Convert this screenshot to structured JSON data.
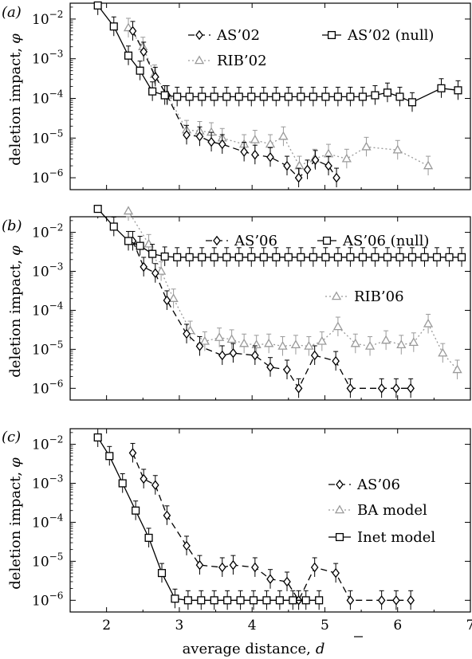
{
  "figure": {
    "xlabel": "average distance,",
    "xlabel_symbol": "d",
    "x_ticks": [
      2,
      3,
      4,
      5,
      6,
      7
    ],
    "xlim": [
      1.5,
      7.0
    ],
    "ylim_exponents": [
      -6.3,
      -1.6
    ],
    "y_tick_exponents": [
      -2,
      -3,
      -4,
      -5,
      -6
    ]
  },
  "chart_data": [
    {
      "type": "line",
      "panel": "(a)",
      "ylabel": "deletion impact,",
      "ylabel_symbol": "φ",
      "yscale": "log",
      "legend": [
        {
          "label": "AS’02",
          "series": 0
        },
        {
          "label": "AS’02 (null)",
          "series": 2
        },
        {
          "label": "RIB’02",
          "series": 1
        }
      ],
      "series": [
        {
          "name": "AS’02",
          "color": "#000000",
          "marker": "diamond",
          "dash": "8 5",
          "x": [
            2.36,
            2.51,
            2.67,
            2.83,
            3.1,
            3.28,
            3.44,
            3.59,
            3.89,
            4.04,
            4.25,
            4.48,
            4.64,
            4.76,
            4.87,
            5.05,
            5.16
          ],
          "y": [
            0.005,
            0.0015,
            0.00035,
            0.00012,
            1.2e-05,
            1.1e-05,
            8e-06,
            7e-06,
            4.5e-06,
            3.8e-06,
            3.3e-06,
            2e-06,
            1e-06,
            1.6e-06,
            2.8e-06,
            2e-06,
            1e-06
          ]
        },
        {
          "name": "RIB’02",
          "color": "#9a9a9a",
          "marker": "triangle",
          "dash": "2 3",
          "x": [
            2.3,
            2.5,
            2.66,
            2.84,
            3.1,
            3.28,
            3.44,
            3.59,
            3.89,
            4.04,
            4.25,
            4.43,
            4.65,
            4.86,
            5.05,
            5.3,
            5.57,
            6.0,
            6.42
          ],
          "y": [
            0.006,
            0.002,
            0.0004,
            0.00012,
            1.6e-05,
            1.5e-05,
            1.4e-05,
            1e-05,
            7e-06,
            9e-06,
            7e-06,
            1.1e-05,
            2e-06,
            3e-06,
            4e-06,
            3e-06,
            6e-06,
            5e-06,
            2e-06
          ]
        },
        {
          "name": "AS’02 (null)",
          "color": "#000000",
          "marker": "square",
          "dash": "",
          "x": [
            1.88,
            2.1,
            2.3,
            2.46,
            2.63,
            2.8,
            2.97,
            3.14,
            3.31,
            3.48,
            3.65,
            3.82,
            3.99,
            4.16,
            4.33,
            4.5,
            4.67,
            4.84,
            5.01,
            5.18,
            5.35,
            5.52,
            5.69,
            5.86,
            6.03,
            6.2,
            6.6,
            6.83
          ],
          "y": [
            0.022,
            0.0065,
            0.0012,
            0.0005,
            0.00015,
            0.00012,
            0.00011,
            0.00011,
            0.00011,
            0.00011,
            0.00011,
            0.00011,
            0.00011,
            0.00011,
            0.00011,
            0.00011,
            0.00011,
            0.00011,
            0.00011,
            0.00011,
            0.00011,
            0.00011,
            0.00012,
            0.00014,
            0.00011,
            8e-05,
            0.00018,
            0.00016
          ]
        }
      ]
    },
    {
      "type": "line",
      "panel": "(b)",
      "ylabel": "deletion impact,",
      "ylabel_symbol": "φ",
      "yscale": "log",
      "legend": [
        {
          "label": "AS’06",
          "series": 0
        },
        {
          "label": "AS’06 (null)",
          "series": 2
        },
        {
          "label": "RIB’06",
          "series": 1
        }
      ],
      "series": [
        {
          "name": "AS’06",
          "color": "#000000",
          "marker": "diamond",
          "dash": "8 5",
          "x": [
            2.36,
            2.51,
            2.67,
            2.83,
            3.1,
            3.28,
            3.59,
            3.74,
            4.04,
            4.25,
            4.48,
            4.64,
            4.86,
            5.15,
            5.35,
            5.78,
            5.98,
            6.18
          ],
          "y": [
            0.006,
            0.0013,
            0.0009,
            0.00018,
            2.5e-05,
            1.2e-05,
            7e-06,
            8e-06,
            7e-06,
            3.5e-06,
            3e-06,
            1e-06,
            7e-06,
            5e-06,
            1e-06,
            1e-06,
            1e-06,
            1e-06
          ]
        },
        {
          "name": "RIB’06",
          "color": "#9a9a9a",
          "marker": "triangle",
          "dash": "2 3",
          "x": [
            2.3,
            2.58,
            2.75,
            2.92,
            3.15,
            3.35,
            3.55,
            3.72,
            3.89,
            4.06,
            4.23,
            4.42,
            4.6,
            4.78,
            4.96,
            5.18,
            5.42,
            5.62,
            5.84,
            6.05,
            6.22,
            6.42,
            6.62,
            6.82
          ],
          "y": [
            0.035,
            0.005,
            0.001,
            0.0002,
            3e-05,
            1.6e-05,
            2e-05,
            1.8e-05,
            1.4e-05,
            1.3e-05,
            1.4e-05,
            1.2e-05,
            1.3e-05,
            1.2e-05,
            1.6e-05,
            3.8e-05,
            1.4e-05,
            1.2e-05,
            1.7e-05,
            1.3e-05,
            1.5e-05,
            4.5e-05,
            8e-06,
            3e-06
          ]
        },
        {
          "name": "AS’06 (null)",
          "color": "#000000",
          "marker": "square",
          "dash": "",
          "x": [
            1.88,
            2.1,
            2.3,
            2.46,
            2.63,
            2.8,
            2.97,
            3.14,
            3.31,
            3.48,
            3.65,
            3.82,
            3.99,
            4.16,
            4.33,
            4.5,
            4.67,
            4.84,
            5.01,
            5.18,
            5.35,
            5.52,
            5.69,
            5.86,
            6.03,
            6.2,
            6.37,
            6.54,
            6.71,
            6.88
          ],
          "y": [
            0.04,
            0.014,
            0.006,
            0.0045,
            0.0028,
            0.0024,
            0.0023,
            0.0023,
            0.0023,
            0.0023,
            0.0023,
            0.0023,
            0.0023,
            0.0023,
            0.0023,
            0.0023,
            0.0023,
            0.0023,
            0.0023,
            0.0023,
            0.0023,
            0.0023,
            0.0023,
            0.0023,
            0.0023,
            0.0023,
            0.0023,
            0.0023,
            0.0023,
            0.0023
          ]
        }
      ]
    },
    {
      "type": "line",
      "panel": "(c)",
      "ylabel": "deletion impact,",
      "ylabel_symbol": "φ",
      "yscale": "log",
      "legend": [
        {
          "label": "AS’06",
          "series": 0
        },
        {
          "label": "BA model",
          "series": 1
        },
        {
          "label": "Inet model",
          "series": 2
        }
      ],
      "series": [
        {
          "name": "AS’06",
          "color": "#000000",
          "marker": "diamond",
          "dash": "8 5",
          "x": [
            2.36,
            2.51,
            2.67,
            2.83,
            3.1,
            3.28,
            3.59,
            3.74,
            4.04,
            4.25,
            4.48,
            4.64,
            4.86,
            5.15,
            5.35,
            5.78,
            5.98,
            6.18
          ],
          "y": [
            0.006,
            0.0013,
            0.0009,
            0.00015,
            2.5e-05,
            8e-06,
            7e-06,
            8e-06,
            7e-06,
            3.5e-06,
            3e-06,
            1e-06,
            7e-06,
            5e-06,
            1e-06,
            1e-06,
            1e-06,
            1e-06
          ]
        },
        {
          "name": "BA model",
          "color": "#9a9a9a",
          "marker": "triangle",
          "dash": "2 3",
          "x": [],
          "y": []
        },
        {
          "name": "Inet model",
          "color": "#000000",
          "marker": "square",
          "dash": "",
          "x": [
            1.88,
            2.04,
            2.22,
            2.4,
            2.58,
            2.76,
            2.94,
            3.12,
            3.3,
            3.48,
            3.66,
            3.84,
            4.02,
            4.2,
            4.38,
            4.56,
            4.74,
            4.92
          ],
          "y": [
            0.015,
            0.005,
            0.001,
            0.0002,
            4e-05,
            5e-06,
            1.1e-06,
            1e-06,
            1e-06,
            1e-06,
            1e-06,
            1e-06,
            1e-06,
            1e-06,
            1e-06,
            1e-06,
            1e-06,
            1e-06
          ]
        }
      ]
    }
  ]
}
